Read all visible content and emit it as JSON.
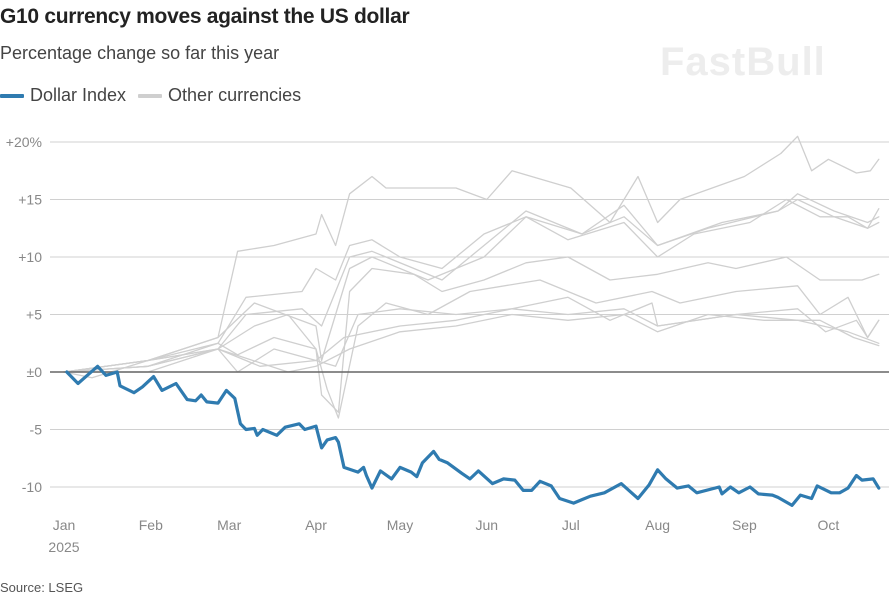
{
  "title": "G10 currency moves against the US dollar",
  "subtitle": "Percentage change so far this year",
  "source": "Source: LSEG",
  "watermark": "FastBull",
  "colors": {
    "dollar": "#2f7bb0",
    "other": "#cfcfcf",
    "grid": "#d0d0d0",
    "zero": "#666666"
  },
  "chart_data": {
    "type": "line",
    "title": "G10 currency moves against the US dollar",
    "subtitle": "Percentage change so far this year",
    "xlabel": "",
    "ylabel": "",
    "x_units": "day of year 2025 (0 = Jan 1)",
    "xlim": [
      0,
      293
    ],
    "ylim": [
      -12,
      21
    ],
    "grid": true,
    "legend": {
      "placement": "top-left",
      "entries": [
        "Dollar Index",
        "Other currencies"
      ]
    },
    "y_ticks": [
      {
        "value": 20,
        "label": "+20%"
      },
      {
        "value": 15,
        "label": "+15"
      },
      {
        "value": 10,
        "label": "+10"
      },
      {
        "value": 5,
        "label": "+5"
      },
      {
        "value": 0,
        "label": "±0"
      },
      {
        "value": -5,
        "label": "-5"
      },
      {
        "value": -10,
        "label": "-10"
      }
    ],
    "x_ticks": [
      {
        "value": 0,
        "label": "Jan",
        "sub": "2025"
      },
      {
        "value": 31,
        "label": "Feb"
      },
      {
        "value": 59,
        "label": "Mar"
      },
      {
        "value": 90,
        "label": "Apr"
      },
      {
        "value": 120,
        "label": "May"
      },
      {
        "value": 151,
        "label": "Jun"
      },
      {
        "value": 181,
        "label": "Jul"
      },
      {
        "value": 212,
        "label": "Aug"
      },
      {
        "value": 243,
        "label": "Sep"
      },
      {
        "value": 273,
        "label": "Oct"
      }
    ],
    "series": [
      {
        "name": "Dollar Index",
        "highlight": true,
        "x": [
          1,
          5,
          12,
          15,
          19,
          20,
          25,
          28,
          32,
          35,
          40,
          44,
          47,
          49,
          51,
          55,
          58,
          61,
          63,
          65,
          68,
          69,
          71,
          76,
          79,
          84,
          86,
          90,
          92,
          94,
          97,
          98,
          100,
          105,
          107,
          108,
          110,
          113,
          117,
          120,
          124,
          126,
          128,
          132,
          134,
          137,
          142,
          145,
          148,
          153,
          157,
          161,
          164,
          167,
          170,
          174,
          177,
          182,
          185,
          188,
          193,
          199,
          205,
          209,
          212,
          215,
          219,
          223,
          226,
          234,
          235,
          238,
          241,
          245,
          248,
          253,
          255,
          260,
          263,
          267,
          269,
          274,
          277,
          280,
          283,
          285,
          289,
          291
        ],
        "y": [
          0,
          -1.0,
          0.5,
          -0.3,
          0,
          -1.2,
          -1.8,
          -1.3,
          -0.4,
          -1.6,
          -1.0,
          -2.4,
          -2.5,
          -2.0,
          -2.6,
          -2.7,
          -1.6,
          -2.3,
          -4.5,
          -5.0,
          -4.9,
          -5.5,
          -5.0,
          -5.5,
          -4.8,
          -4.5,
          -5.0,
          -4.7,
          -6.6,
          -5.9,
          -5.7,
          -6.1,
          -8.3,
          -8.7,
          -8.3,
          -9.0,
          -10.1,
          -8.6,
          -9.3,
          -8.3,
          -8.7,
          -9.1,
          -7.9,
          -6.9,
          -7.6,
          -7.9,
          -8.8,
          -9.3,
          -8.6,
          -9.7,
          -9.3,
          -9.4,
          -10.3,
          -10.3,
          -9.5,
          -9.9,
          -11.0,
          -11.4,
          -11.1,
          -10.8,
          -10.5,
          -9.7,
          -11.0,
          -9.8,
          -8.5,
          -9.3,
          -10.1,
          -9.9,
          -10.5,
          -10.0,
          -10.6,
          -10.0,
          -10.5,
          -10.0,
          -10.6,
          -10.7,
          -10.9,
          -11.6,
          -10.7,
          -11.0,
          -9.9,
          -10.5,
          -10.5,
          -10.1,
          -9.0,
          -9.4,
          -9.3,
          -10.1
        ]
      },
      {
        "name": "Other currency 1",
        "x": [
          0,
          30,
          55,
          62,
          75,
          90,
          92,
          97,
          102,
          110,
          115,
          140,
          151,
          160,
          181,
          195,
          205,
          212,
          220,
          243,
          256,
          262,
          267,
          273,
          283,
          288,
          291
        ],
        "y": [
          0,
          1,
          3,
          10.5,
          11,
          12,
          13.7,
          11,
          15.5,
          17,
          16,
          16,
          15,
          17.5,
          16,
          13,
          17,
          13,
          15,
          17,
          19,
          20.5,
          17.5,
          18.5,
          17.3,
          17.5,
          18.5
        ]
      },
      {
        "name": "Other currency 2",
        "x": [
          0,
          30,
          55,
          65,
          85,
          90,
          97,
          102,
          110,
          120,
          135,
          150,
          165,
          180,
          200,
          212,
          225,
          245,
          258,
          270,
          280,
          287,
          291
        ],
        "y": [
          0,
          1,
          2.5,
          6.5,
          7,
          9,
          8,
          11,
          11.5,
          10,
          9,
          12,
          13.5,
          11.5,
          13,
          10,
          12,
          13,
          15,
          13.5,
          13.5,
          12.5,
          14.2
        ]
      },
      {
        "name": "Other currency 3",
        "x": [
          0,
          30,
          55,
          65,
          85,
          92,
          102,
          110,
          125,
          135,
          150,
          165,
          185,
          200,
          212,
          235,
          255,
          262,
          275,
          287,
          291
        ],
        "y": [
          0,
          0.5,
          2,
          5,
          5.5,
          4,
          10,
          10.5,
          9,
          8,
          11,
          14,
          12,
          14.5,
          11,
          13,
          14,
          15.5,
          14,
          13,
          13.5
        ]
      },
      {
        "name": "Other currency 4",
        "x": [
          0,
          30,
          55,
          68,
          90,
          92,
          102,
          110,
          130,
          150,
          165,
          185,
          200,
          212,
          230,
          255,
          262,
          275,
          287,
          291
        ],
        "y": [
          0,
          1,
          3,
          6,
          4,
          1,
          9,
          10,
          8,
          10,
          13.5,
          12,
          13.5,
          11,
          12.5,
          14,
          15,
          13.5,
          12.5,
          13
        ]
      },
      {
        "name": "Other currency 5",
        "x": [
          0,
          30,
          55,
          68,
          80,
          90,
          92,
          98,
          102,
          110,
          125,
          135,
          150,
          165,
          180,
          195,
          212,
          230,
          240,
          258,
          270,
          285,
          291
        ],
        "y": [
          0,
          1,
          2,
          4,
          5,
          2,
          -2,
          -3.5,
          7,
          9,
          8.5,
          7,
          8,
          9.5,
          10,
          8,
          8.5,
          9.5,
          9,
          10,
          8,
          8,
          8.5
        ]
      },
      {
        "name": "Other currency 6",
        "x": [
          0,
          30,
          55,
          62,
          75,
          90,
          94,
          98,
          105,
          115,
          130,
          145,
          170,
          190,
          210,
          220,
          240,
          262,
          270,
          280,
          287,
          291
        ],
        "y": [
          0,
          0.5,
          2.5,
          1.5,
          3,
          2,
          -1.5,
          -4,
          4,
          6,
          5,
          7,
          8,
          6,
          7,
          6,
          7,
          7.5,
          5,
          6.5,
          3,
          4.5
        ]
      },
      {
        "name": "Other currency 7",
        "x": [
          0,
          30,
          55,
          62,
          75,
          90,
          97,
          105,
          120,
          140,
          160,
          180,
          195,
          210,
          212,
          240,
          262,
          272,
          283,
          287,
          291
        ],
        "y": [
          0,
          0.5,
          2,
          0,
          2,
          1,
          0.5,
          5,
          5.5,
          5,
          5.5,
          6.5,
          4.5,
          6,
          4,
          5,
          5.5,
          3.5,
          4.5,
          3,
          4.5
        ]
      },
      {
        "name": "Other currency 8",
        "x": [
          0,
          30,
          55,
          70,
          90,
          100,
          120,
          140,
          160,
          180,
          200,
          212,
          240,
          262,
          280,
          291
        ],
        "y": [
          0,
          0,
          2,
          0.5,
          1,
          3,
          4,
          4.5,
          5.5,
          5,
          5.5,
          4,
          5,
          4.5,
          3.5,
          2.5
        ]
      },
      {
        "name": "Other currency 9",
        "x": [
          0,
          10,
          30,
          55,
          80,
          90,
          102,
          120,
          140,
          160,
          180,
          200,
          212,
          230,
          250,
          270,
          282,
          291
        ],
        "y": [
          0,
          -0.5,
          1,
          2,
          0,
          0.5,
          2,
          3.5,
          4,
          5,
          4.5,
          5,
          3.5,
          5,
          4.5,
          4.5,
          3,
          2.3
        ]
      }
    ]
  }
}
